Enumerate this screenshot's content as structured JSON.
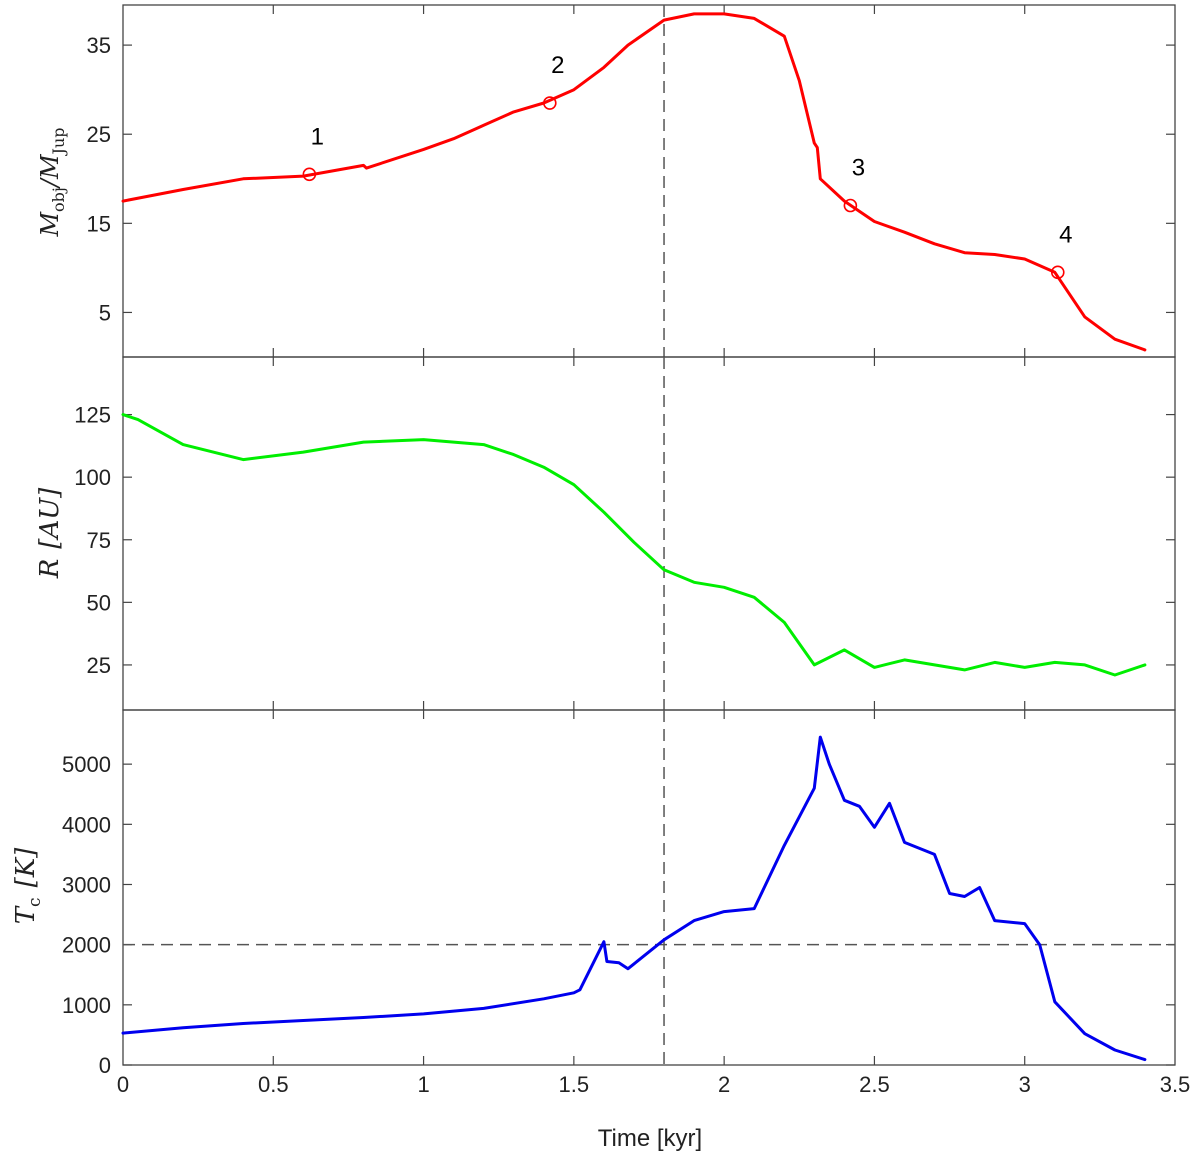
{
  "chart_data": {
    "type": "line",
    "xlabel": "Time [kyr]",
    "xlim": [
      0,
      3.5
    ],
    "xticks": [
      0,
      0.5,
      1,
      1.5,
      2,
      2.5,
      3,
      3.5
    ],
    "xtick_labels": [
      "0",
      "0.5",
      "1",
      "1.5",
      "2",
      "2.5",
      "3",
      "3.5"
    ],
    "grid": false,
    "vline_x": 1.8,
    "panels": [
      {
        "id": "mass",
        "ylabel_main": "M",
        "ylabel_sub": "obj",
        "ylabel_mid": "/M",
        "ylabel_sub2": "Jup",
        "ylim": [
          0,
          39.5
        ],
        "yticks": [
          5,
          15,
          25,
          35
        ],
        "ytick_labels": [
          "5",
          "15",
          "25",
          "35"
        ],
        "color": "#ff0000",
        "x": [
          0,
          0.2,
          0.4,
          0.6,
          0.8,
          0.81,
          1.0,
          1.1,
          1.2,
          1.3,
          1.4,
          1.5,
          1.6,
          1.68,
          1.8,
          1.9,
          2.0,
          2.1,
          2.2,
          2.25,
          2.3,
          2.31,
          2.32,
          2.4,
          2.5,
          2.6,
          2.7,
          2.8,
          2.9,
          3.0,
          3.1,
          3.2,
          3.3,
          3.4
        ],
        "y": [
          17.5,
          18.8,
          20.0,
          20.3,
          21.5,
          21.2,
          23.3,
          24.5,
          26.0,
          27.5,
          28.5,
          30.0,
          32.5,
          35.0,
          37.8,
          38.5,
          38.5,
          38.0,
          36.0,
          31.0,
          24.0,
          23.5,
          20.0,
          17.5,
          15.2,
          14.0,
          12.7,
          11.7,
          11.5,
          11.0,
          9.5,
          4.5,
          2.0,
          0.8
        ],
        "markers": [
          {
            "label": "1",
            "x": 0.62,
            "y": 20.5
          },
          {
            "label": "2",
            "x": 1.42,
            "y": 28.5
          },
          {
            "label": "3",
            "x": 2.42,
            "y": 17.0
          },
          {
            "label": "4",
            "x": 3.11,
            "y": 9.5
          }
        ]
      },
      {
        "id": "radius",
        "ylabel_main": "R",
        "ylabel_unit": "[AU]",
        "ylim": [
          7,
          148
        ],
        "yticks": [
          25,
          50,
          75,
          100,
          125
        ],
        "ytick_labels": [
          "25",
          "50",
          "75",
          "100",
          "125"
        ],
        "color": "#00ee00",
        "x": [
          0,
          0.05,
          0.2,
          0.4,
          0.6,
          0.8,
          1.0,
          1.1,
          1.2,
          1.3,
          1.4,
          1.5,
          1.6,
          1.7,
          1.8,
          1.9,
          2.0,
          2.1,
          2.2,
          2.3,
          2.4,
          2.5,
          2.6,
          2.7,
          2.8,
          2.9,
          3.0,
          3.1,
          3.2,
          3.3,
          3.4
        ],
        "y": [
          125,
          123,
          113,
          107,
          110,
          114,
          115,
          114,
          113,
          109,
          104,
          97,
          86,
          74,
          63,
          58,
          56,
          52,
          42,
          25,
          31,
          24,
          27,
          25,
          23,
          26,
          24,
          26,
          25,
          21,
          25
        ]
      },
      {
        "id": "temperature",
        "ylabel_main": "T",
        "ylabel_sub": "c",
        "ylabel_unit": "[K]",
        "ylim": [
          0,
          5900
        ],
        "yticks": [
          0,
          1000,
          2000,
          3000,
          4000,
          5000
        ],
        "ytick_labels": [
          "0",
          "1000",
          "2000",
          "3000",
          "4000",
          "5000"
        ],
        "color": "#0000ee",
        "hline_y": 2000,
        "x": [
          0,
          0.2,
          0.4,
          0.6,
          0.8,
          1.0,
          1.2,
          1.4,
          1.5,
          1.52,
          1.6,
          1.61,
          1.65,
          1.68,
          1.8,
          1.9,
          2.0,
          2.1,
          2.2,
          2.3,
          2.32,
          2.35,
          2.4,
          2.45,
          2.5,
          2.55,
          2.6,
          2.7,
          2.75,
          2.8,
          2.85,
          2.9,
          3.0,
          3.05,
          3.1,
          3.2,
          3.3,
          3.4
        ],
        "y": [
          530,
          620,
          690,
          740,
          790,
          850,
          940,
          1100,
          1200,
          1250,
          2050,
          1720,
          1700,
          1600,
          2080,
          2400,
          2550,
          2600,
          3650,
          4600,
          5450,
          5000,
          4400,
          4300,
          3950,
          4350,
          3700,
          3500,
          2850,
          2800,
          2950,
          2400,
          2350,
          2000,
          1050,
          520,
          250,
          90
        ]
      }
    ]
  }
}
